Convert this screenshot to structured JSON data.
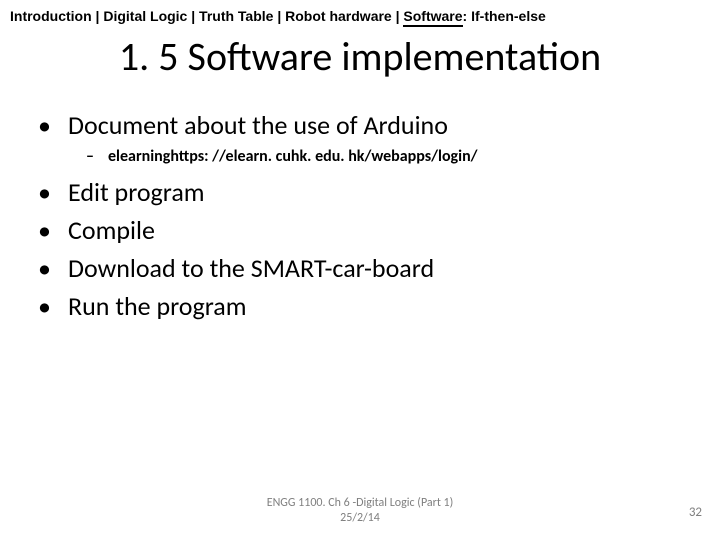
{
  "breadcrumb": {
    "parts": [
      "Introduction | Digital Logic | Truth Table | Robot hardware | ",
      "Software",
      ": If-then-else"
    ]
  },
  "title": "1. 5 Software implementation",
  "items": [
    {
      "level": 1,
      "text": "Document about the use of Arduino"
    },
    {
      "level": 2,
      "text": "elearninghttps: //elearn. cuhk. edu. hk/webapps/login/"
    },
    {
      "level": 1,
      "text": "Edit program"
    },
    {
      "level": 1,
      "text": "Compile"
    },
    {
      "level": 1,
      "text": "Download to the SMART-car-board"
    },
    {
      "level": 1,
      "text": "Run the program"
    }
  ],
  "footer": {
    "line1": "ENGG 1100. Ch 6 -Digital Logic (Part 1)",
    "line2": "25/2/14"
  },
  "page_number": "32",
  "colors": {
    "background": "#ffffff",
    "text": "#000000",
    "footer": "#7f7f7f"
  }
}
